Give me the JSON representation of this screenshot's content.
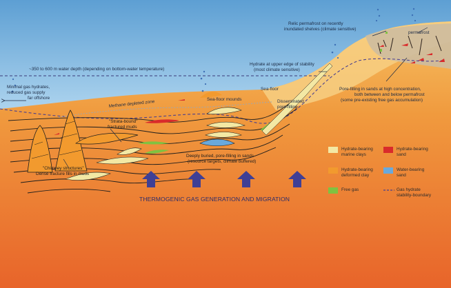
{
  "colors": {
    "sky": "#ffffff",
    "ocean_top": "#6aa8d8",
    "ocean_bottom": "#a9d2ee",
    "sediment_top": "#f3b35a",
    "sediment_bottom": "#ea6b2a",
    "hydrate_clay": "#f3e8a4",
    "hydrate_sand": "#d92b2b",
    "deformed_clay": "#f29a2e",
    "water_sand": "#69a9dc",
    "free_gas": "#7fc241",
    "stability_boundary": "#4a3f8f",
    "permafrost": "#c9b79a",
    "arrow": "#3f3f95"
  },
  "labels": {
    "relic_permafrost": [
      "Relic permafrost on recently",
      "inundated shelves (climate sensitive)"
    ],
    "permafrost": "permafrost",
    "water_depth": "~350 to 600 m water depth (depending on bottom-water temperature)",
    "upper_edge": [
      "Hydrate at upper edge of stability",
      "(most climate sensitive)"
    ],
    "minimal_hydrates": [
      "Minimal gas hydrates,",
      "reduced gas supply",
      "far offshore"
    ],
    "methane_depleted": "Methane depleted zone",
    "sea_floor": "Sea-floor",
    "sea_floor_mounds": "Sea-floor mounds",
    "disseminated": [
      "Disseminated,",
      "pore-filling"
    ],
    "pore_filling_permafrost": [
      "Pore-filling in sands at high concentration,",
      "both between and below permafrost",
      "(some pre-existing free gas accumulation)"
    ],
    "strata_bound": [
      "\"Strata-bound\"",
      "fractured muds"
    ],
    "chimney": [
      "\"Chimney structures\"",
      "Dense fracture fills in muds"
    ],
    "deeply_buried": [
      "Deeply buried, pore-filling in sands",
      "(resource targets, climate buffered)"
    ],
    "thermogenic": "THERMOGENIC GAS GENERATION AND MIGRATION"
  },
  "legend": [
    {
      "key": "hydrate_clay",
      "lines": [
        "Hydrate-bearing",
        "marine clays"
      ],
      "color": "#f3e8a4",
      "type": "swatch"
    },
    {
      "key": "hydrate_sand",
      "lines": [
        "Hydrate-bearing",
        "sand"
      ],
      "color": "#d92b2b",
      "type": "swatch"
    },
    {
      "key": "deformed_clay",
      "lines": [
        "Hydrate-bearing",
        "deformed clay"
      ],
      "color": "#f29a2e",
      "type": "swatch"
    },
    {
      "key": "water_sand",
      "lines": [
        "Water-bearing",
        "sand"
      ],
      "color": "#69a9dc",
      "type": "swatch"
    },
    {
      "key": "free_gas",
      "lines": [
        "Free gas"
      ],
      "color": "#7fc241",
      "type": "swatch"
    },
    {
      "key": "stability",
      "lines": [
        "Gas hydrate",
        "stability-boundary"
      ],
      "color": "#4a3f8f",
      "type": "dashed"
    }
  ]
}
